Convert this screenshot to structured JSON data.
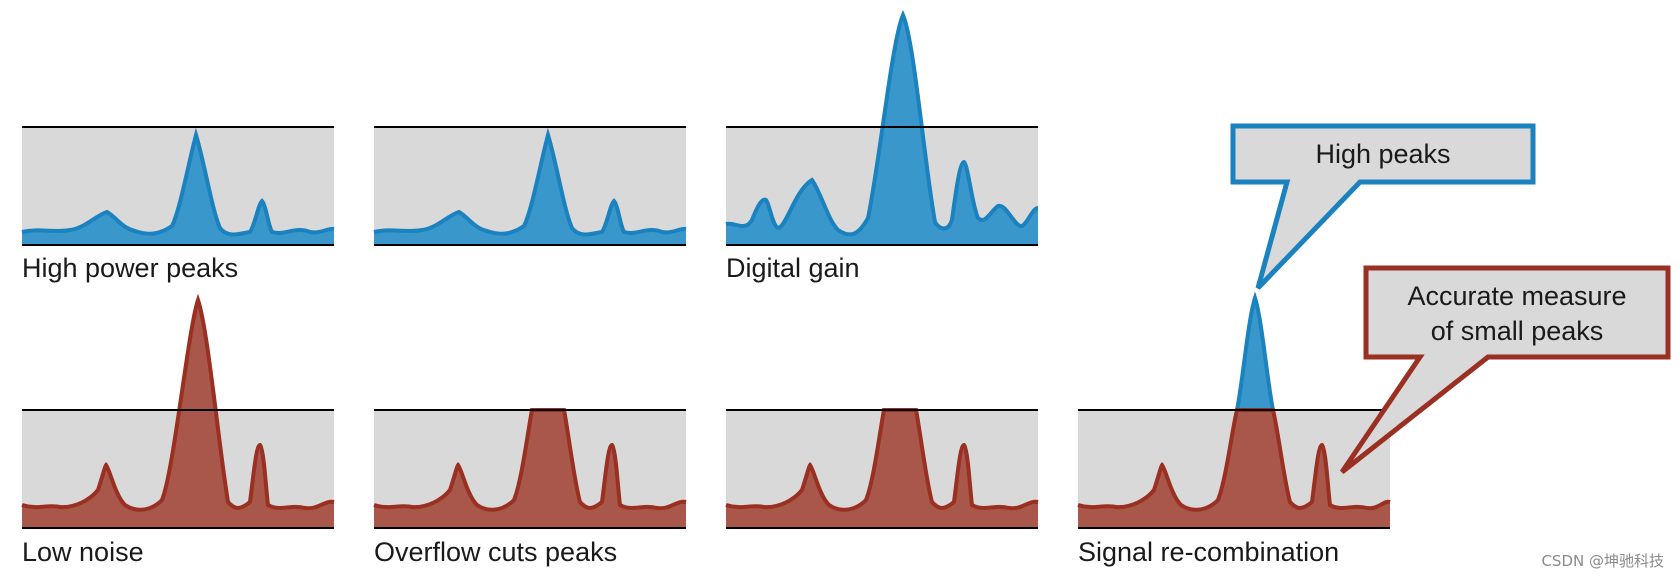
{
  "colors": {
    "blue_line": "#1a82bf",
    "blue_fill": "#3a97cb",
    "red_line": "#9a3022",
    "red_fill": "#a8574a",
    "box_fill": "#d9d9d9",
    "line": "#000000",
    "text": "#1a1a1a",
    "watermark": "#8a8a8a"
  },
  "panels": [
    {
      "id": "high-power-peaks",
      "label": "High power peaks",
      "signal": "high_power",
      "clip": false
    },
    {
      "id": "high-power-unlabeled",
      "label": "",
      "signal": "high_power",
      "clip": false
    },
    {
      "id": "digital-gain",
      "label": "Digital gain",
      "signal": "digital_gain",
      "clip": false
    },
    {
      "id": "low-noise",
      "label": "Low noise",
      "signal": "low_noise",
      "clip": false
    },
    {
      "id": "overflow-cuts-peaks",
      "label": "Overflow cuts peaks",
      "signal": "low_noise",
      "clip": true
    },
    {
      "id": "overflow-unlabeled",
      "label": "",
      "signal": "low_noise",
      "clip": true
    },
    {
      "id": "signal-recombination",
      "label": "Signal re-combination",
      "signal": "recombination",
      "clip": false
    }
  ],
  "callouts": {
    "high_peaks": {
      "lines": [
        "High peaks"
      ]
    },
    "small_peaks": {
      "lines": [
        "Accurate measure",
        "of small peaks"
      ]
    }
  },
  "watermark": "CSDN @坤驰科技"
}
